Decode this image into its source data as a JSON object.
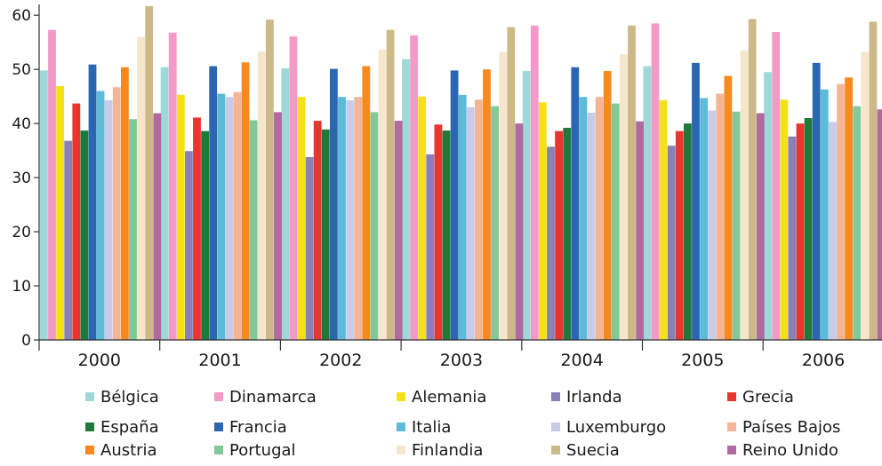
{
  "chart_data": {
    "type": "bar",
    "categories": [
      "2000",
      "2001",
      "2002",
      "2003",
      "2004",
      "2005",
      "2006"
    ],
    "ylim": [
      0,
      62
    ],
    "yticks": [
      0,
      10,
      20,
      30,
      40,
      50,
      60
    ],
    "grid": false,
    "legend_position": "bottom",
    "series": [
      {
        "name": "Bélgica",
        "color": "#9fd8d8",
        "values": [
          49.8,
          50.4,
          50.2,
          51.9,
          49.7,
          50.6,
          49.5
        ]
      },
      {
        "name": "Dinamarca",
        "color": "#f49ac8",
        "values": [
          57.3,
          56.8,
          56.1,
          56.3,
          58.1,
          58.5,
          56.9
        ]
      },
      {
        "name": "Alemania",
        "color": "#f5e118",
        "values": [
          46.9,
          45.3,
          44.9,
          45.0,
          43.9,
          44.3,
          44.4
        ]
      },
      {
        "name": "Irlanda",
        "color": "#8a80b8",
        "values": [
          36.8,
          34.9,
          33.8,
          34.3,
          35.7,
          35.9,
          37.6
        ]
      },
      {
        "name": "Grecia",
        "color": "#e8352e",
        "values": [
          43.7,
          41.1,
          40.5,
          39.8,
          38.6,
          38.6,
          40.0
        ]
      },
      {
        "name": "España",
        "color": "#1e7a3a",
        "values": [
          38.7,
          38.6,
          38.9,
          38.7,
          39.2,
          40.0,
          41.0
        ]
      },
      {
        "name": "Francia",
        "color": "#2b66b3",
        "values": [
          50.9,
          50.6,
          50.1,
          49.8,
          50.4,
          51.2,
          51.2
        ]
      },
      {
        "name": "Italia",
        "color": "#5bbbd8",
        "values": [
          46.0,
          45.5,
          44.9,
          45.3,
          44.9,
          44.7,
          46.3
        ]
      },
      {
        "name": "Luxemburgo",
        "color": "#c8cce8",
        "values": [
          44.3,
          44.9,
          44.3,
          43.0,
          42.0,
          42.4,
          40.3
        ]
      },
      {
        "name": "Países Bajos",
        "color": "#f4b496",
        "values": [
          46.7,
          45.8,
          44.9,
          44.4,
          44.9,
          45.5,
          47.3
        ]
      },
      {
        "name": "Austria",
        "color": "#f68a1f",
        "values": [
          50.4,
          51.3,
          50.6,
          50.0,
          49.7,
          48.8,
          48.5
        ]
      },
      {
        "name": "Portugal",
        "color": "#82c99a",
        "values": [
          40.8,
          40.6,
          42.1,
          43.2,
          43.7,
          42.2,
          43.2
        ]
      },
      {
        "name": "Finlandia",
        "color": "#f5e6cc",
        "values": [
          56.0,
          53.3,
          53.7,
          53.2,
          52.8,
          53.5,
          53.2
        ]
      },
      {
        "name": "Suecia",
        "color": "#cdb987",
        "values": [
          61.7,
          59.2,
          57.3,
          57.8,
          58.1,
          59.3,
          58.8
        ]
      },
      {
        "name": "Reino Unido",
        "color": "#b06a9f",
        "values": [
          41.9,
          42.1,
          40.5,
          40.0,
          40.4,
          41.9,
          42.6
        ]
      }
    ]
  }
}
